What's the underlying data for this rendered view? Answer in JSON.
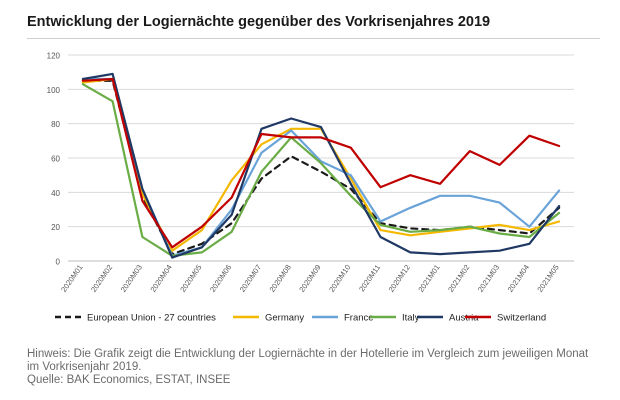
{
  "title": "Entwicklung der Logiernächte gegenüber des Vorkrisenjahres 2019",
  "footnote": {
    "line1": "Hinweis: Die Grafik zeigt die Entwicklung der Logiernächte in der Hotellerie im Vergleich zum jeweiligen Monat",
    "line2": "im Vorkrisenjahr 2019.",
    "line3": "Quelle: BAK Economics, ESTAT, INSEE"
  },
  "chart_data": {
    "type": "line",
    "title": "",
    "xlabel": "",
    "ylabel": "",
    "ylim": [
      0,
      120
    ],
    "yticks": [
      0,
      20,
      40,
      60,
      80,
      100,
      120
    ],
    "grid": "horizontal",
    "legend_position": "bottom",
    "categories": [
      "2020M01",
      "2020M02",
      "2020M03",
      "2020M04",
      "2020M05",
      "2020M06",
      "2020M07",
      "2020M08",
      "2020M09",
      "2020M10",
      "2020M11",
      "2020M12",
      "2021M01",
      "2021M02",
      "2021M03",
      "2021M04",
      "2021M05"
    ],
    "series": [
      {
        "name": "European Union - 27 countries",
        "color": "#1a1a1a",
        "dash": true,
        "values": [
          105,
          105,
          38,
          4,
          10,
          22,
          48,
          61,
          52,
          42,
          22,
          19,
          18,
          20,
          18,
          16,
          31
        ]
      },
      {
        "name": "Germany",
        "color": "#f5b800",
        "dash": false,
        "values": [
          104,
          106,
          39,
          6,
          18,
          47,
          68,
          77,
          77,
          48,
          18,
          15,
          17,
          19,
          21,
          18,
          23
        ]
      },
      {
        "name": "France",
        "color": "#6aa3d8",
        "dash": false,
        "values": [
          106,
          106,
          42,
          3,
          8,
          30,
          63,
          76,
          58,
          50,
          23,
          31,
          38,
          38,
          34,
          20,
          41
        ]
      },
      {
        "name": "Italy",
        "color": "#6aac45",
        "dash": false,
        "values": [
          103,
          93,
          14,
          3,
          5,
          17,
          52,
          72,
          57,
          38,
          21,
          17,
          18,
          20,
          16,
          14,
          28
        ]
      },
      {
        "name": "Austria",
        "color": "#1f3864",
        "dash": false,
        "values": [
          106,
          109,
          42,
          2,
          8,
          27,
          77,
          83,
          78,
          45,
          14,
          5,
          4,
          5,
          6,
          10,
          32
        ]
      },
      {
        "name": "Switzerland",
        "color": "#c00000",
        "dash": false,
        "values": [
          105,
          106,
          35,
          8,
          20,
          37,
          74,
          72,
          72,
          66,
          43,
          50,
          45,
          64,
          56,
          73,
          67
        ]
      }
    ]
  }
}
